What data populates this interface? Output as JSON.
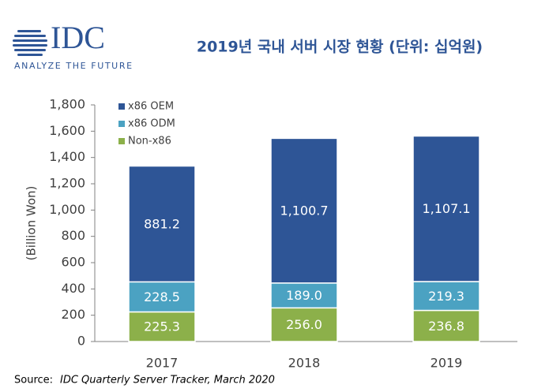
{
  "logo": {
    "name": "IDC",
    "tagline": "ANALYZE THE FUTURE"
  },
  "chart_data": {
    "type": "stacked_bar",
    "title": "2019년 국내 서버 시장 현황 (단위: 십억원)",
    "y_label": "(Billion Won)",
    "categories": [
      "2017",
      "2018",
      "2019"
    ],
    "series": [
      {
        "name": "Non-x86",
        "color": "#8cb04a",
        "values": [
          225.3,
          256.0,
          236.8
        ],
        "value_labels": [
          "225.3",
          "256.0",
          "236.8"
        ]
      },
      {
        "name": "x86 ODM",
        "color": "#4ba2c2",
        "values": [
          228.5,
          189.0,
          219.3
        ],
        "value_labels": [
          "228.5",
          "189.0",
          "219.3"
        ]
      },
      {
        "name": "x86 OEM",
        "color": "#2e5596",
        "values": [
          881.2,
          1100.7,
          1107.1
        ],
        "value_labels": [
          "881.2",
          "1,100.7",
          "1,107.1"
        ]
      }
    ],
    "ylim": [
      0,
      1800
    ],
    "yticks": [
      0,
      200,
      400,
      600,
      800,
      {
        "value": 1000,
        "label": "1,000"
      },
      {
        "value": 1200,
        "label": "1,200"
      },
      {
        "value": 1400,
        "label": "1,400"
      },
      {
        "value": 1600,
        "label": "1,600"
      },
      {
        "value": 1800,
        "label": "1,800"
      }
    ],
    "grid": false,
    "legend": "top-left",
    "note_label": "Source:",
    "note": "IDC Quarterly Server Tracker, March 2020"
  }
}
